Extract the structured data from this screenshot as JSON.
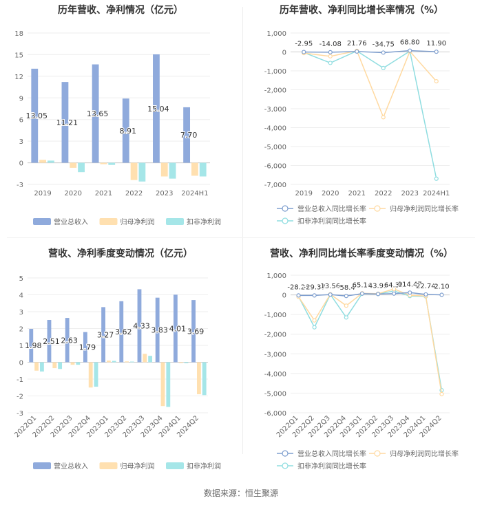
{
  "source_text": "数据来源：恒生聚源",
  "chart_data": [
    {
      "type": "bar",
      "title": "历年营收、净利情况（亿元）",
      "categories": [
        "2019",
        "2020",
        "2021",
        "2022",
        "2023",
        "2024H1"
      ],
      "ylim": [
        -3,
        18
      ],
      "yticks": [
        -3,
        0,
        3,
        6,
        9,
        12,
        15,
        18
      ],
      "series": [
        {
          "name": "营业总收入",
          "color": "#8faadc",
          "values": [
            13.05,
            11.21,
            13.65,
            8.91,
            15.04,
            7.7
          ],
          "labels": [
            "13.05",
            "11.21",
            "13.65",
            "8.91",
            "15.04",
            "7.70"
          ]
        },
        {
          "name": "归母净利润",
          "color": "#ffe0b0",
          "values": [
            0.4,
            -0.7,
            -0.2,
            -2.4,
            -1.9,
            -1.8
          ]
        },
        {
          "name": "扣非净利润",
          "color": "#a5e6e8",
          "values": [
            0.3,
            -1.3,
            -0.3,
            -2.6,
            -2.2,
            -1.9
          ]
        }
      ],
      "legend_position": "bottom"
    },
    {
      "type": "line",
      "title": "历年营收、净利同比增长率情况（%）",
      "categories": [
        "2019",
        "2020",
        "2021",
        "2022",
        "2023",
        "2024H1"
      ],
      "ylim": [
        -7000,
        1000
      ],
      "yticks": [
        -7000,
        -6000,
        -5000,
        -4000,
        -3000,
        -2000,
        -1000,
        0,
        1000
      ],
      "ytick_labels": [
        "-7,000",
        "-6,000",
        "-5,000",
        "-4,000",
        "-3,000",
        "-2,000",
        "-1,000",
        "0",
        "1,000"
      ],
      "series": [
        {
          "name": "营业总收入同比增长率",
          "color": "#7f9fcf",
          "values": [
            -2.95,
            -14.08,
            21.76,
            -34.75,
            68.8,
            11.9
          ],
          "labels": [
            "-2.95",
            "-14.08",
            "21.76",
            "-34.75",
            "68.80",
            "11.90"
          ]
        },
        {
          "name": "归母净利润同比增长率",
          "color": "#ffd9a0",
          "values": [
            -60,
            -230,
            60,
            -3450,
            30,
            -1550
          ]
        },
        {
          "name": "扣非净利润同比增长率",
          "color": "#8fdde0",
          "values": [
            -30,
            -580,
            50,
            -850,
            40,
            -6700
          ]
        }
      ],
      "legend_position": "bottom"
    },
    {
      "type": "bar",
      "title": "营收、净利季度变动情况（亿元）",
      "categories": [
        "2022Q1",
        "2022Q2",
        "2022Q3",
        "2022Q4",
        "2023Q1",
        "2023Q2",
        "2023Q3",
        "2023Q4",
        "2024Q1",
        "2024Q2"
      ],
      "ylim": [
        -3,
        5
      ],
      "yticks": [
        -3,
        -2,
        -1,
        0,
        1,
        2,
        3,
        4,
        5
      ],
      "series": [
        {
          "name": "营业总收入",
          "color": "#8faadc",
          "values": [
            1.98,
            2.51,
            2.63,
            1.79,
            3.27,
            3.62,
            4.33,
            3.83,
            4.01,
            3.69
          ],
          "labels": [
            "1.98",
            "2.51",
            "2.63",
            "1.79",
            "3.27",
            "3.62",
            "4.33",
            "3.83",
            "4.01",
            "3.69"
          ]
        },
        {
          "name": "归母净利润",
          "color": "#ffe0b0",
          "values": [
            -0.5,
            -0.35,
            -0.15,
            -1.5,
            0.1,
            0.05,
            0.5,
            -2.6,
            -0.05,
            -1.9
          ]
        },
        {
          "name": "扣非净利润",
          "color": "#a5e6e8",
          "values": [
            -0.55,
            -0.4,
            -0.15,
            -1.45,
            0.08,
            0.04,
            0.38,
            -2.65,
            -0.06,
            -1.95
          ]
        }
      ],
      "legend_position": "bottom"
    },
    {
      "type": "line",
      "title": "营收、净利同比增长率季度变动情况（%）",
      "categories": [
        "2022Q1",
        "2022Q2",
        "2022Q3",
        "2022Q4",
        "2023Q1",
        "2023Q2",
        "2023Q3",
        "2023Q4",
        "2024Q1",
        "2024Q2"
      ],
      "ylim": [
        -6000,
        1000
      ],
      "yticks": [
        -6000,
        -5000,
        -4000,
        -3000,
        -2000,
        -1000,
        0,
        1000
      ],
      "ytick_labels": [
        "-6,000",
        "-5,000",
        "-4,000",
        "-3,000",
        "-2,000",
        "-1,000",
        "0",
        "1,000"
      ],
      "series": [
        {
          "name": "营业总收入同比增长率",
          "color": "#7f9fcf",
          "values": [
            -28.23,
            -29.37,
            13.56,
            -58.4,
            65.14,
            43.93,
            64.31,
            114.47,
            22.74,
            2.1
          ],
          "labels": [
            "-28.23",
            "-29.37",
            "13.56",
            "-58.4",
            "65.14",
            "43.93",
            "64.31",
            "114.47",
            "22.74",
            "2.10"
          ]
        },
        {
          "name": "归母净利润同比增长率",
          "color": "#ffd9a0",
          "values": [
            -100,
            -1300,
            30,
            -550,
            80,
            60,
            300,
            -20,
            -60,
            -5050
          ]
        },
        {
          "name": "扣非净利润同比增长率",
          "color": "#8fdde0",
          "values": [
            -80,
            -1650,
            20,
            -1150,
            60,
            40,
            200,
            -60,
            -80,
            -4850
          ]
        }
      ],
      "legend_position": "bottom"
    }
  ]
}
